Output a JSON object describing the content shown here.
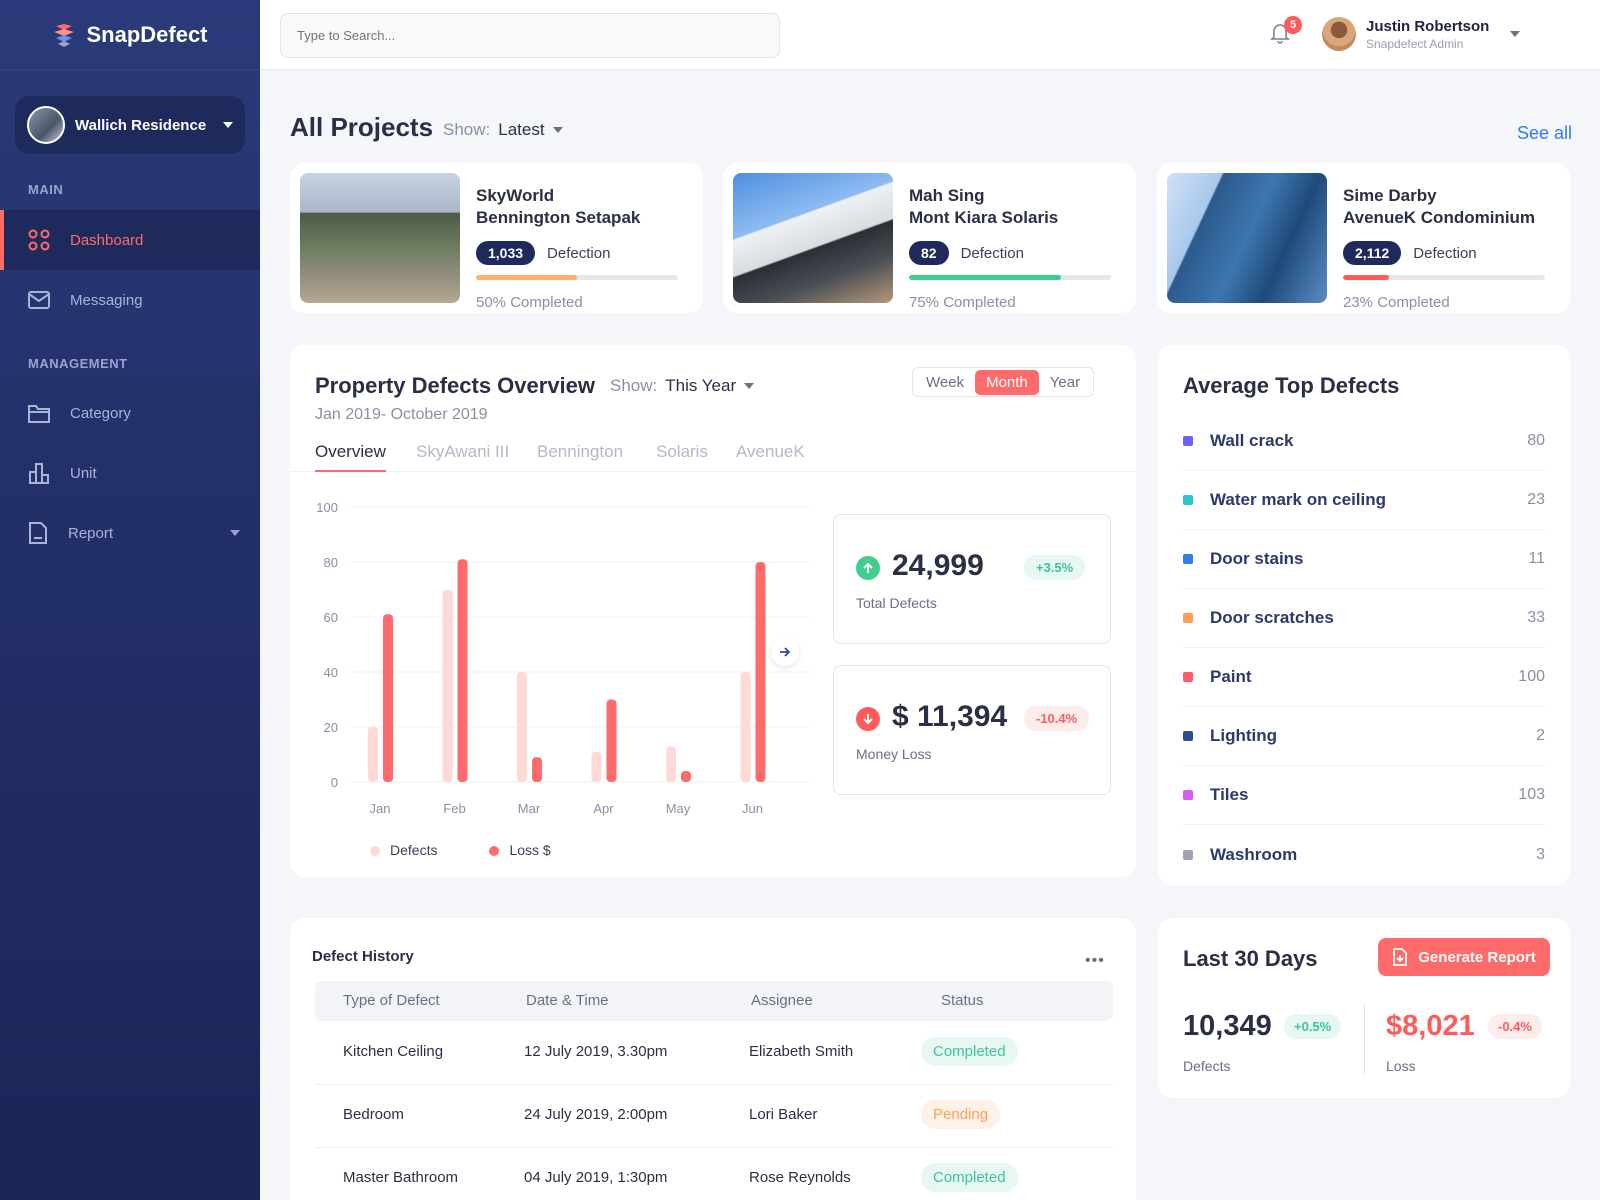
{
  "app": {
    "name": "SnapDefect"
  },
  "sidebar": {
    "project": "Wallich Residence",
    "sections": [
      "MAIN",
      "MANAGEMENT"
    ],
    "items": [
      {
        "label": "Dashboard",
        "icon": "grid-icon"
      },
      {
        "label": "Messaging",
        "icon": "mail-icon"
      },
      {
        "label": "Category",
        "icon": "folder-icon"
      },
      {
        "label": "Unit",
        "icon": "building-icon"
      },
      {
        "label": "Report",
        "icon": "document-icon"
      }
    ]
  },
  "topbar": {
    "search_placeholder": "Type to Search...",
    "notifications": "5",
    "user_name": "Justin Robertson",
    "user_role": "Snapdefect Admin"
  },
  "projects": {
    "title": "All Projects",
    "show_label": "Show:",
    "show_value": "Latest",
    "see_all": "See all",
    "defection_label": "Defection",
    "cards": [
      {
        "line1": "SkyWorld",
        "line2": "Bennington Setapak",
        "count": "1,033",
        "progress": 50,
        "completed": "50% Completed",
        "color": "#ffb26b"
      },
      {
        "line1": "Mah Sing",
        "line2": "Mont Kiara Solaris",
        "count": "82",
        "progress": 75,
        "completed": "75% Completed",
        "color": "#3ecf8e"
      },
      {
        "line1": "Sime Darby",
        "line2": "AvenueK Condominium",
        "count": "2,112",
        "progress": 23,
        "completed": "23% Completed",
        "color": "#ff5b5b"
      }
    ]
  },
  "overview": {
    "title": "Property Defects Overview",
    "show_label": "Show:",
    "show_value": "This Year",
    "range": "Jan 2019- October 2019",
    "periods": [
      "Week",
      "Month",
      "Year"
    ],
    "active_period": "Month",
    "tabs": [
      "Overview",
      "SkyAwani III",
      "Bennington",
      "Solaris",
      "AvenueK"
    ],
    "total_defects": {
      "value": "24,999",
      "label": "Total Defects",
      "change": "+3.5%"
    },
    "money_loss": {
      "value": "$ 11,394",
      "label": "Money Loss",
      "change": "-10.4%"
    }
  },
  "chart_data": {
    "type": "bar",
    "categories": [
      "Jan",
      "Feb",
      "Mar",
      "Apr",
      "May",
      "Jun"
    ],
    "series": [
      {
        "name": "Defects",
        "values": [
          20,
          70,
          40,
          11,
          13,
          40
        ],
        "color": "#ffd9d6"
      },
      {
        "name": "Loss $",
        "values": [
          61,
          81,
          9,
          30,
          4,
          80
        ],
        "color": "#ff6b6b"
      }
    ],
    "ylim": [
      0,
      100
    ],
    "yticks": [
      0,
      20,
      40,
      60,
      80,
      100
    ],
    "grid": true,
    "legend": "bottom"
  },
  "top_defects": {
    "title": "Average Top Defects",
    "items": [
      {
        "name": "Wall crack",
        "value": "80",
        "color": "#6c63ff"
      },
      {
        "name": "Water mark on ceiling",
        "value": "23",
        "color": "#2ec5d3"
      },
      {
        "name": "Door stains",
        "value": "11",
        "color": "#2f80ed"
      },
      {
        "name": "Door scratches",
        "value": "33",
        "color": "#ff9f57"
      },
      {
        "name": "Paint",
        "value": "100",
        "color": "#ff5b6e"
      },
      {
        "name": "Lighting",
        "value": "2",
        "color": "#2b4d9a"
      },
      {
        "name": "Tiles",
        "value": "103",
        "color": "#d85cf0"
      },
      {
        "name": "Washroom",
        "value": "3",
        "color": "#a0a3b1"
      }
    ]
  },
  "history": {
    "title": "Defect History",
    "more": "•••",
    "columns": [
      "Type of Defect",
      "Date & Time",
      "Assignee",
      "Status"
    ],
    "rows": [
      {
        "type": "Kitchen Ceiling",
        "date": "12 July 2019, 3.30pm",
        "assignee": "Elizabeth Smith",
        "status": "Completed"
      },
      {
        "type": "Bedroom",
        "date": "24 July 2019, 2:00pm",
        "assignee": "Lori Baker",
        "status": "Pending"
      },
      {
        "type": "Master Bathroom",
        "date": "04 July 2019, 1:30pm",
        "assignee": "Rose Reynolds",
        "status": "Completed"
      }
    ]
  },
  "last30": {
    "title": "Last 30 Days",
    "button": "Generate Report",
    "defects": {
      "value": "10,349",
      "change": "+0.5%",
      "label": "Defects"
    },
    "loss": {
      "value": "$8,021",
      "change": "-0.4%",
      "label": "Loss"
    }
  }
}
